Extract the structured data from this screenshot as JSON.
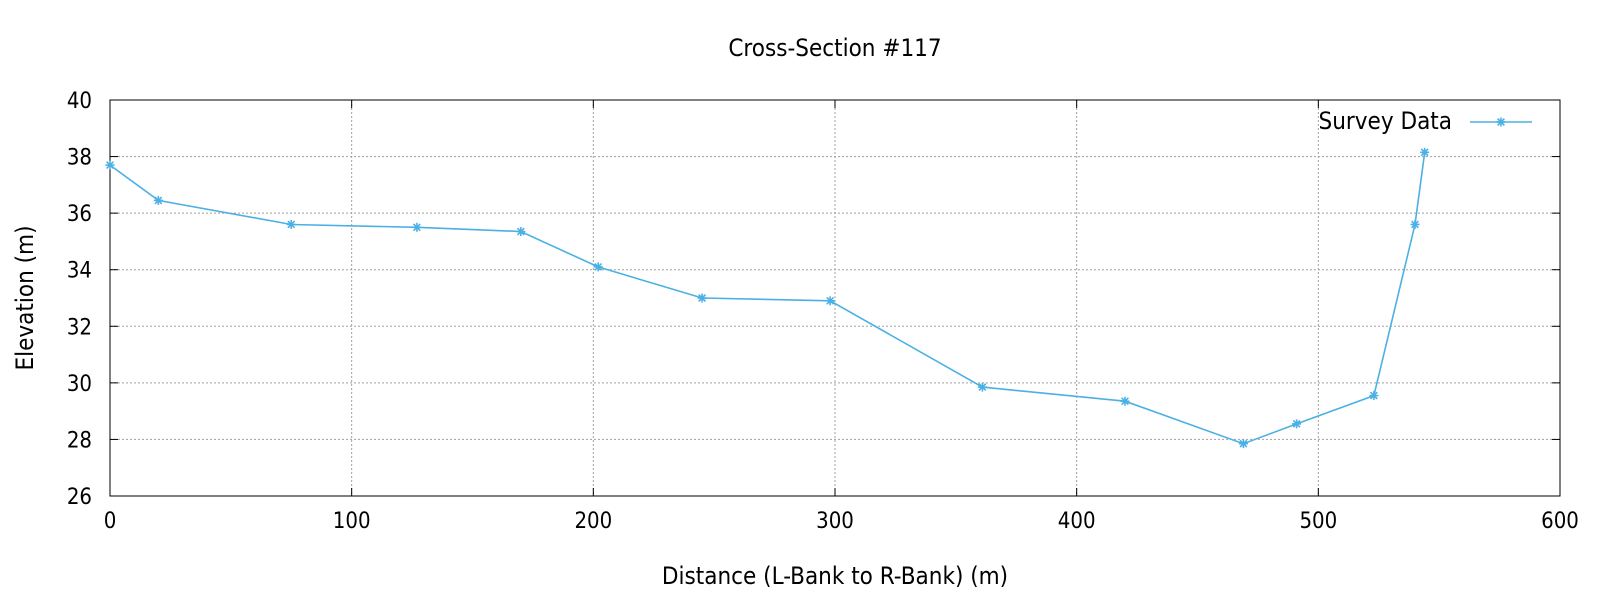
{
  "chart_data": {
    "type": "line",
    "title": "Cross-Section #117",
    "xlabel": "Distance (L-Bank to R-Bank) (m)",
    "ylabel": "Elevation (m)",
    "xlim": [
      0,
      600
    ],
    "ylim": [
      26,
      40
    ],
    "xticks": [
      0,
      100,
      200,
      300,
      400,
      500,
      600
    ],
    "yticks": [
      26,
      28,
      30,
      32,
      34,
      36,
      38,
      40
    ],
    "grid": true,
    "legend_position": "top-right",
    "series": [
      {
        "name": "Survey Data",
        "color": "#4bb0e4",
        "marker": "asterisk",
        "x": [
          0,
          20,
          75,
          127,
          170,
          202,
          245,
          298,
          361,
          420,
          469,
          491,
          523,
          540,
          544
        ],
        "y": [
          37.7,
          36.45,
          35.6,
          35.5,
          35.35,
          34.1,
          33.0,
          32.9,
          29.85,
          29.35,
          27.85,
          28.55,
          29.55,
          35.6,
          38.15
        ]
      }
    ]
  }
}
